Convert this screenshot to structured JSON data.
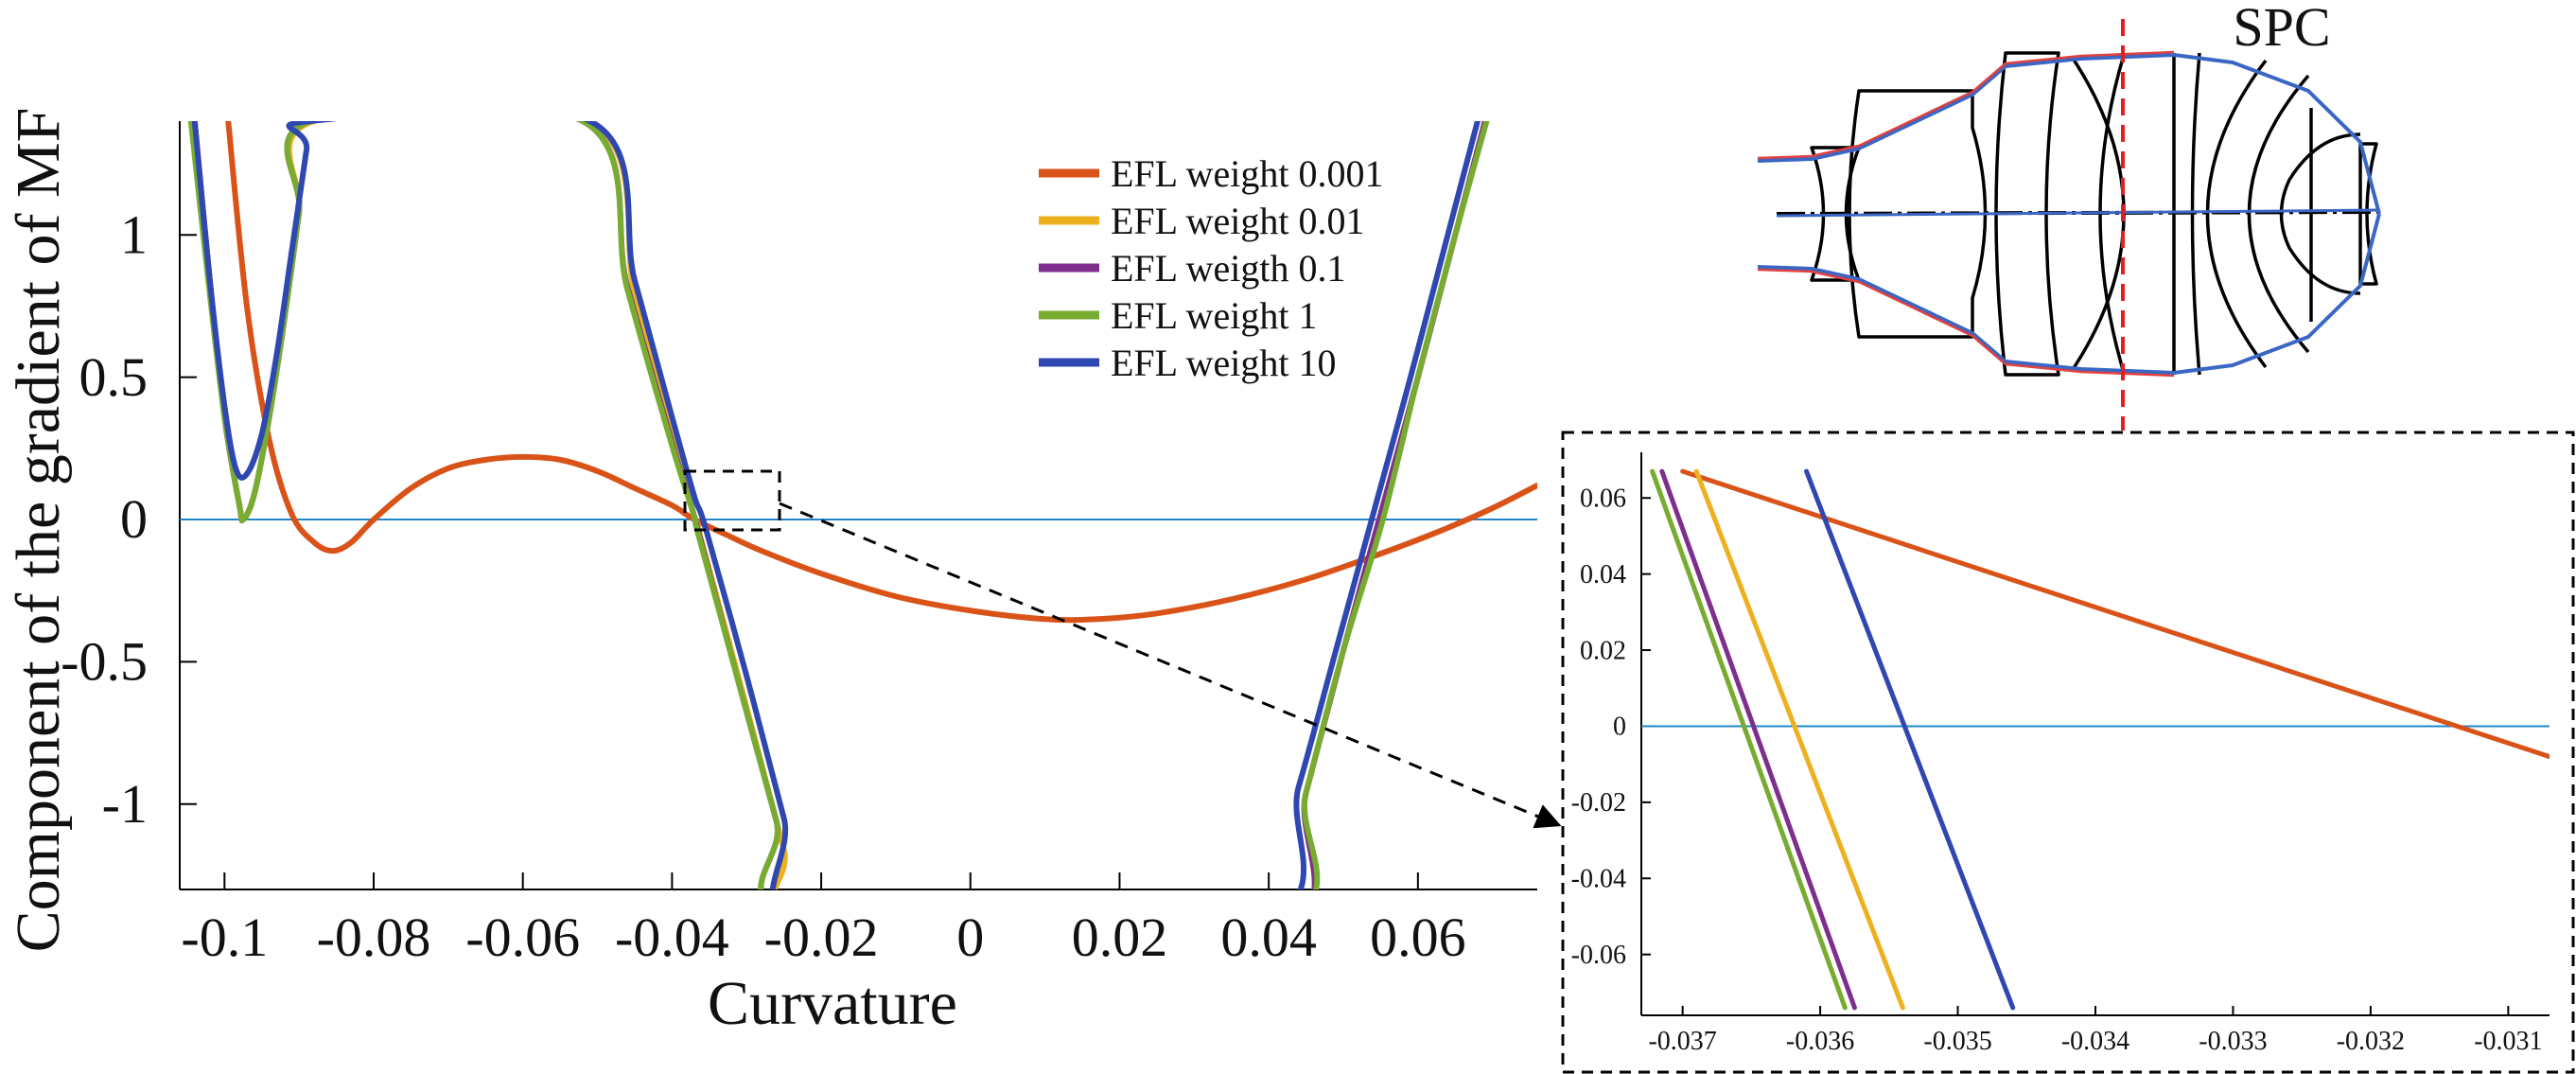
{
  "chart_data": [
    {
      "type": "line",
      "xlabel": "Curvature",
      "ylabel": "Component of the gradient of MF",
      "xlim": [
        -0.106,
        0.076
      ],
      "ylim": [
        -1.3,
        1.4
      ],
      "x_ticks": [
        -0.1,
        -0.08,
        -0.06,
        -0.04,
        -0.02,
        0,
        0.02,
        0.04,
        0.06
      ],
      "x_tick_labels": [
        "-0.1",
        "-0.08",
        "-0.06",
        "-0.04",
        "-0.02",
        "0",
        "0.02",
        "0.04",
        "0.06"
      ],
      "y_ticks": [
        -1,
        -0.5,
        0,
        0.5,
        1
      ],
      "y_tick_labels": [
        "-1",
        "-0.5",
        "0",
        "0.5",
        "1"
      ],
      "zero_line_color": "#1f86c9",
      "legend_position": "top-center",
      "series": [
        {
          "name": "EFL weight 0.001",
          "color": "#d95319",
          "x": [
            -0.0995,
            -0.097,
            -0.094,
            -0.091,
            -0.088,
            -0.0855,
            -0.083,
            -0.08,
            -0.075,
            -0.07,
            -0.065,
            -0.06,
            -0.055,
            -0.05,
            -0.045,
            -0.04,
            -0.037,
            -0.033,
            -0.028,
            -0.02,
            -0.01,
            0,
            0.01,
            0.017,
            0.025,
            0.035,
            0.045,
            0.055,
            0.063,
            0.07,
            0.076
          ],
          "y": [
            1.4,
            0.75,
            0.28,
            0.02,
            -0.08,
            -0.11,
            -0.08,
            0.0,
            0.11,
            0.18,
            0.21,
            0.22,
            0.21,
            0.17,
            0.11,
            0.05,
            0.0,
            -0.05,
            -0.11,
            -0.19,
            -0.27,
            -0.32,
            -0.35,
            -0.35,
            -0.33,
            -0.28,
            -0.21,
            -0.12,
            -0.04,
            0.04,
            0.12
          ]
        },
        {
          "name": "EFL weight 0.01",
          "color": "#edb120",
          "x": [
            -0.104,
            -0.102,
            -0.1,
            -0.098,
            -0.0975,
            -0.096,
            -0.094,
            -0.092,
            -0.09,
            -0.088,
            -0.051,
            -0.045,
            -0.04,
            -0.037,
            -0.0362,
            -0.03,
            -0.025,
            -0.022,
            0.04,
            0.045,
            0.05,
            0.0548,
            0.06,
            0.065,
            0.07,
            0.072
          ],
          "y": [
            1.4,
            0.85,
            0.36,
            0.05,
            0.0,
            0.09,
            0.36,
            0.7,
            1.08,
            1.4,
            1.4,
            0.79,
            0.29,
            0.01,
            -0.06,
            -0.66,
            -1.16,
            -1.46,
            -1.46,
            -0.96,
            -0.46,
            0.0,
            0.5,
            1.0,
            1.5,
            1.7
          ]
        },
        {
          "name": "EFL weigth 0.1",
          "color": "#7e2f8e",
          "x": [
            -0.104,
            -0.102,
            -0.1,
            -0.098,
            -0.0975,
            -0.096,
            -0.094,
            -0.092,
            -0.09,
            -0.0885,
            -0.052,
            -0.046,
            -0.04,
            -0.037,
            -0.0364,
            -0.031,
            -0.026,
            -0.0225,
            0.04,
            0.045,
            0.05,
            0.0548,
            0.06,
            0.065,
            0.0705
          ],
          "y": [
            1.4,
            0.85,
            0.36,
            0.05,
            0.0,
            0.09,
            0.36,
            0.7,
            1.08,
            1.4,
            1.4,
            0.82,
            0.27,
            0.01,
            -0.05,
            -0.58,
            -1.06,
            -1.4,
            -1.46,
            -0.96,
            -0.46,
            0.0,
            0.5,
            1.0,
            1.55
          ]
        },
        {
          "name": "EFL weight 1",
          "color": "#77ac30",
          "x": [
            -0.1045,
            -0.102,
            -0.1,
            -0.098,
            -0.0975,
            -0.096,
            -0.094,
            -0.092,
            -0.09,
            -0.0885,
            -0.052,
            -0.046,
            -0.04,
            -0.037,
            -0.0365,
            -0.031,
            -0.026,
            -0.0225,
            0.0405,
            0.045,
            0.05,
            0.0553,
            0.06,
            0.065,
            0.0708
          ],
          "y": [
            1.4,
            0.8,
            0.36,
            0.05,
            0.0,
            0.09,
            0.36,
            0.7,
            1.08,
            1.4,
            1.4,
            0.81,
            0.26,
            0.01,
            -0.05,
            -0.58,
            -1.06,
            -1.4,
            -1.42,
            -0.96,
            -0.46,
            0.0,
            0.5,
            1.0,
            1.55
          ]
        },
        {
          "name": "EFL weight 10",
          "color": "#2f47b0",
          "x": [
            -0.104,
            -0.102,
            -0.1,
            -0.0985,
            -0.097,
            -0.095,
            -0.093,
            -0.091,
            -0.089,
            -0.0885,
            -0.051,
            -0.045,
            -0.04,
            -0.037,
            -0.0355,
            -0.03,
            -0.025,
            -0.021,
            0.0385,
            0.044,
            0.049,
            0.0538,
            0.059,
            0.064,
            0.0695
          ],
          "y": [
            1.4,
            0.85,
            0.4,
            0.18,
            0.16,
            0.3,
            0.58,
            0.94,
            1.3,
            1.4,
            1.4,
            0.84,
            0.36,
            0.08,
            -0.03,
            -0.55,
            -1.05,
            -1.45,
            -1.42,
            -0.94,
            -0.46,
            0.0,
            0.5,
            1.0,
            1.55
          ]
        }
      ]
    },
    {
      "type": "line",
      "title": "",
      "xlim": [
        -0.0373,
        -0.0307
      ],
      "ylim": [
        -0.076,
        0.072
      ],
      "x_ticks": [
        -0.037,
        -0.036,
        -0.035,
        -0.034,
        -0.033,
        -0.032,
        -0.031
      ],
      "x_tick_labels": [
        "-0.037",
        "-0.036",
        "-0.035",
        "-0.034",
        "-0.033",
        "-0.032",
        "-0.031"
      ],
      "y_ticks": [
        0.06,
        0.04,
        0.02,
        0,
        -0.02,
        -0.04,
        -0.06
      ],
      "y_tick_labels": [
        "0.06",
        "0.04",
        "0.02",
        "0",
        "-0.02",
        "-0.04",
        "-0.06"
      ],
      "zero_line_color": "#1f86c9",
      "series": [
        {
          "name": "EFL weight 0.001",
          "color": "#d95319",
          "x": [
            -0.037,
            -0.0307
          ],
          "y": [
            0.067,
            -0.008
          ]
        },
        {
          "name": "EFL weight 0.01",
          "color": "#edb120",
          "x": [
            -0.0369,
            -0.0354
          ],
          "y": [
            0.067,
            -0.074
          ]
        },
        {
          "name": "EFL weigth 0.1",
          "color": "#7e2f8e",
          "x": [
            -0.03715,
            -0.03575
          ],
          "y": [
            0.067,
            -0.074
          ]
        },
        {
          "name": "EFL weight 1",
          "color": "#77ac30",
          "x": [
            -0.03722,
            -0.03582
          ],
          "y": [
            0.067,
            -0.074
          ]
        },
        {
          "name": "EFL weight 10",
          "color": "#2f47b0",
          "x": [
            -0.0361,
            -0.0346
          ],
          "y": [
            0.067,
            -0.074
          ]
        }
      ]
    }
  ],
  "diagram": {
    "label": "SPC",
    "outline_color": "#3a66c4",
    "marginal_ray_color": "#e04040",
    "stop_line_color": "#e02020"
  }
}
